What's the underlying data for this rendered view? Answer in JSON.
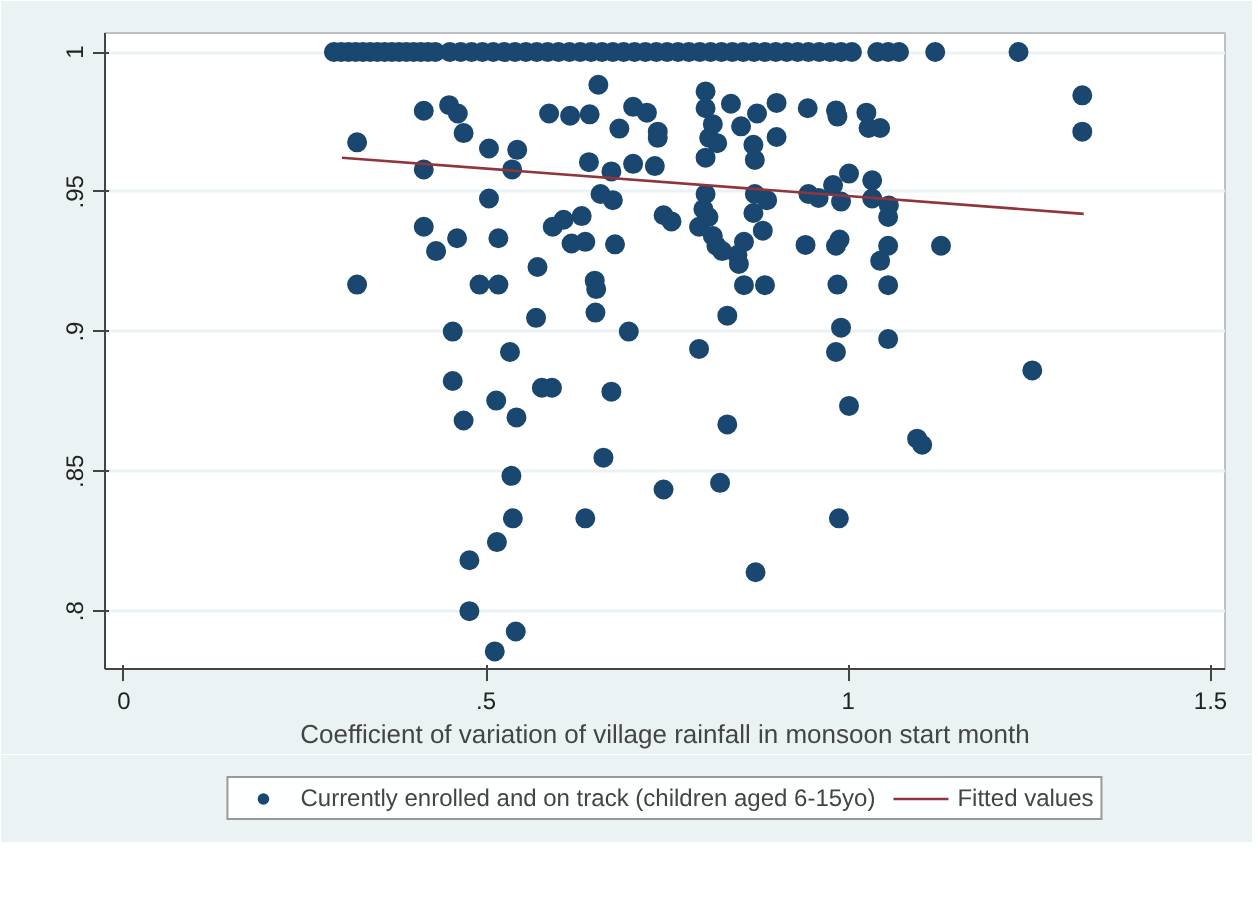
{
  "chart_data": {
    "type": "scatter",
    "xlabel": "Coefficient of variation of village rainfall in monsoon start month",
    "xlim": [
      -0.026,
      1.52
    ],
    "ylim": [
      0.7793,
      1.0068
    ],
    "xticks": [
      0,
      {
        "value": 0.5,
        "label": ".5"
      },
      1,
      1.5
    ],
    "yticks": [
      {
        "value": 0.8,
        "label": ".8"
      },
      {
        "value": 0.85,
        "label": ".85"
      },
      {
        "value": 0.9,
        "label": ".9"
      },
      {
        "value": 0.95,
        "label": ".95"
      },
      1
    ],
    "grid": "y",
    "legend": "bottom",
    "series": [
      {
        "name": "Currently enrolled and on track (children aged 6-15yo)",
        "color": "#1a476f",
        "marker": "circle",
        "x": [
          0.29,
          0.3,
          0.31,
          0.32,
          0.33,
          0.34,
          0.35,
          0.36,
          0.37,
          0.38,
          0.39,
          0.4,
          0.41,
          0.42,
          0.43,
          0.45,
          0.465,
          0.48,
          0.495,
          0.51,
          0.525,
          0.54,
          0.555,
          0.57,
          0.585,
          0.6,
          0.615,
          0.63,
          0.645,
          0.66,
          0.675,
          0.69,
          0.705,
          0.72,
          0.735,
          0.75,
          0.765,
          0.78,
          0.795,
          0.81,
          0.825,
          0.84,
          0.855,
          0.87,
          0.885,
          0.9,
          0.915,
          0.93,
          0.945,
          0.96,
          0.975,
          0.99,
          1.005,
          1.04,
          1.055,
          1.07,
          1.12,
          1.235,
          1.323,
          1.323,
          0.322,
          0.414,
          0.449,
          0.461,
          0.469,
          0.504,
          0.543,
          0.536,
          0.414,
          0.504,
          0.414,
          0.46,
          0.517,
          0.431,
          0.322,
          0.491,
          0.517,
          0.454,
          0.533,
          0.454,
          0.514,
          0.469,
          0.542,
          0.535,
          0.537,
          0.515,
          0.477,
          0.477,
          0.541,
          0.512,
          0.587,
          0.616,
          0.643,
          0.655,
          0.684,
          0.703,
          0.722,
          0.737,
          0.737,
          0.642,
          0.673,
          0.658,
          0.675,
          0.703,
          0.733,
          0.571,
          0.592,
          0.607,
          0.632,
          0.618,
          0.637,
          0.678,
          0.65,
          0.652,
          0.651,
          0.569,
          0.697,
          0.577,
          0.591,
          0.673,
          0.662,
          0.637,
          0.745,
          0.745,
          0.756,
          0.803,
          0.803,
          0.813,
          0.808,
          0.819,
          0.803,
          0.838,
          0.852,
          0.874,
          0.901,
          0.869,
          0.871,
          0.901,
          0.944,
          0.803,
          0.8,
          0.807,
          0.794,
          0.813,
          0.818,
          0.826,
          0.856,
          0.847,
          0.849,
          0.856,
          0.885,
          0.871,
          0.888,
          0.869,
          0.882,
          0.833,
          0.794,
          0.833,
          0.823,
          0.872,
          0.941,
          0.945,
          0.959,
          0.983,
          0.985,
          0.979,
          0.99,
          1.001,
          0.988,
          0.983,
          0.985,
          0.99,
          0.983,
          1.001,
          0.987,
          1.025,
          1.028,
          1.044,
          1.033,
          1.033,
          1.056,
          1.055,
          1.055,
          1.044,
          1.055,
          1.055,
          1.128,
          1.095,
          1.102,
          1.254
        ],
        "values": [
          1,
          1,
          1,
          1,
          1,
          1,
          1,
          1,
          1,
          1,
          1,
          1,
          1,
          1,
          1,
          1,
          1,
          1,
          1,
          1,
          1,
          1,
          1,
          1,
          1,
          1,
          1,
          1,
          1,
          1,
          1,
          1,
          1,
          1,
          1,
          1,
          1,
          1,
          1,
          1,
          1,
          1,
          1,
          1,
          1,
          1,
          1,
          1,
          1,
          1,
          1,
          1,
          1,
          1,
          1,
          1,
          1,
          1,
          0.9845,
          0.9715,
          0.9677,
          0.979,
          0.981,
          0.978,
          0.971,
          0.9655,
          0.965,
          0.958,
          0.958,
          0.9476,
          0.9375,
          0.9334,
          0.9334,
          0.9288,
          0.9168,
          0.9168,
          0.9168,
          0.9,
          0.8927,
          0.8823,
          0.8753,
          0.8682,
          0.8693,
          0.8484,
          0.8332,
          0.8247,
          0.8182,
          0.8,
          0.7927,
          0.7856,
          0.978,
          0.9772,
          0.9777,
          0.9883,
          0.9726,
          0.9804,
          0.9783,
          0.9715,
          0.9693,
          0.9606,
          0.9573,
          0.9492,
          0.947,
          0.96,
          0.9592,
          0.9231,
          0.9375,
          0.94,
          0.9413,
          0.9315,
          0.9321,
          0.9312,
          0.9182,
          0.9152,
          0.9068,
          0.9049,
          0.9,
          0.8799,
          0.8799,
          0.8785,
          0.8549,
          0.8332,
          0.8435,
          0.9416,
          0.9394,
          0.9859,
          0.9799,
          0.9742,
          0.9693,
          0.9674,
          0.9622,
          0.9815,
          0.9734,
          0.978,
          0.9818,
          0.9668,
          0.9614,
          0.9696,
          0.9799,
          0.9492,
          0.9438,
          0.941,
          0.9375,
          0.9342,
          0.9307,
          0.9288,
          0.9321,
          0.9274,
          0.9242,
          0.9166,
          0.9166,
          0.9492,
          0.947,
          0.9424,
          0.9361,
          0.9057,
          0.8938,
          0.8668,
          0.8459,
          0.8139,
          0.931,
          0.9492,
          0.9478,
          0.9791,
          0.9769,
          0.9524,
          0.9465,
          0.9565,
          0.9329,
          0.9307,
          0.9168,
          0.9014,
          0.8927,
          0.8734,
          0.8332,
          0.9783,
          0.9728,
          0.9728,
          0.9541,
          0.9476,
          0.9451,
          0.941,
          0.9307,
          0.9253,
          0.9166,
          0.8973,
          0.9307,
          0.8617,
          0.8595,
          0.8861
        ]
      },
      {
        "type": "line",
        "name": "Fitted values",
        "color": "#90353b",
        "x": [
          0.301,
          1.325
        ],
        "values": [
          0.9622,
          0.9421
        ]
      }
    ]
  }
}
